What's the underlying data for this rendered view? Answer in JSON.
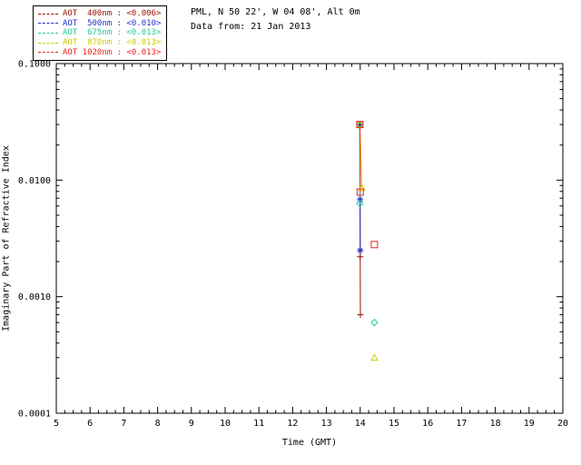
{
  "header": {
    "line1": "PML, N 50 22', W 04 08', Alt 0m",
    "line2": "Data from: 21 Jan 2013"
  },
  "chart_data": {
    "type": "scatter",
    "scale": "log-y",
    "grid": false,
    "legend_position": "top-left-outside",
    "x_axis": {
      "label": "Time (GMT)",
      "min": 5,
      "max": 20,
      "major_ticks": [
        5,
        6,
        7,
        8,
        9,
        10,
        11,
        12,
        13,
        14,
        15,
        16,
        17,
        18,
        19,
        20
      ],
      "minor_tick_step": 0.25
    },
    "y_axis": {
      "label": "Imaginary Part of Refractive Index",
      "min": 0.0001,
      "max": 0.1,
      "tick_values": [
        0.0001,
        0.001,
        0.01,
        0.1
      ],
      "tick_labels": [
        "0.0001",
        "0.0010",
        "0.0100",
        "0.1000"
      ]
    },
    "series": [
      {
        "name": "AOT 400nm",
        "legend_label": "AOT  400nm : <0.006>",
        "mean_value": "<0.006>",
        "color": "#991100",
        "marker": "plus",
        "line": [
          [
            13.99,
            0.03
          ],
          [
            14.0,
            0.0022
          ],
          [
            14.005,
            0.0007
          ]
        ],
        "points": [
          [
            13.99,
            0.03
          ],
          [
            14.0,
            0.0022
          ],
          [
            14.005,
            0.0007
          ]
        ]
      },
      {
        "name": "AOT 500nm",
        "legend_label": "AOT  500nm : <0.010>",
        "mean_value": "<0.010>",
        "color": "#2233cc",
        "marker": "asterisk",
        "line": [
          [
            13.99,
            0.03
          ],
          [
            13.995,
            0.0068
          ],
          [
            14.0,
            0.0025
          ]
        ],
        "points": [
          [
            13.99,
            0.03
          ],
          [
            13.995,
            0.0068
          ],
          [
            14.0,
            0.0025
          ]
        ]
      },
      {
        "name": "AOT 675nm",
        "legend_label": "AOT  675nm : <0.013>",
        "mean_value": "<0.013>",
        "color": "#22cc99",
        "marker": "diamond",
        "line": [
          [
            13.99,
            0.03
          ],
          [
            13.99,
            0.0063
          ]
        ],
        "points": [
          [
            13.99,
            0.03
          ],
          [
            13.99,
            0.0063
          ],
          [
            14.42,
            0.0006
          ]
        ]
      },
      {
        "name": "AOT 870nm",
        "legend_label": "AOT  870nm : <0.013>",
        "mean_value": "<0.013>",
        "color": "#cccc00",
        "marker": "triangle",
        "line": [
          [
            13.99,
            0.03
          ],
          [
            14.05,
            0.0086
          ]
        ],
        "points": [
          [
            13.99,
            0.03
          ],
          [
            14.05,
            0.0086
          ],
          [
            14.42,
            0.0003
          ]
        ]
      },
      {
        "name": "AOT 1020nm",
        "legend_label": "AOT 1020nm : <0.013>",
        "mean_value": "<0.013>",
        "color": "#ee2222",
        "marker": "square",
        "line": [
          [
            13.99,
            0.03
          ],
          [
            14.0,
            0.0079
          ]
        ],
        "points": [
          [
            13.99,
            0.03
          ],
          [
            14.0,
            0.0079
          ],
          [
            14.42,
            0.0028
          ]
        ]
      }
    ]
  }
}
